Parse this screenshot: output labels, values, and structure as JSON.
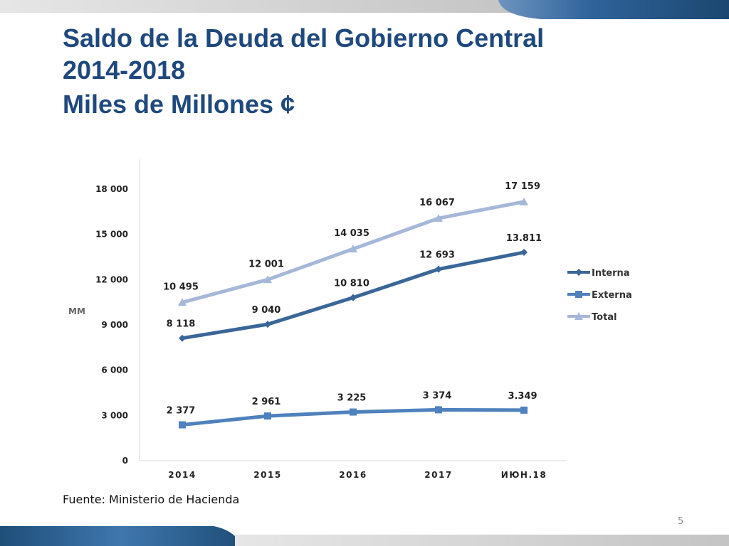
{
  "slide": {
    "title_line1": "Saldo de la Deuda del Gobierno Central",
    "title_line2": "2014-2018",
    "title_line3": "Miles de Millones ¢",
    "source": "Fuente: Ministerio de Hacienda",
    "page_number": "5"
  },
  "colors": {
    "title": "#1f497d",
    "interna": "#3a6698",
    "externa": "#4f81bd",
    "total": "#a6b8d9",
    "band_dark": "#1f4e79",
    "band_light": "#c8c8c8"
  },
  "chart_data": {
    "type": "line",
    "title": "",
    "ylabel": "MM",
    "xlabel": "",
    "categories": [
      "2014",
      "2015",
      "2016",
      "2017",
      "июн.18"
    ],
    "ylim": [
      0,
      18000
    ],
    "yticks": [
      0,
      3000,
      6000,
      9000,
      12000,
      15000,
      18000
    ],
    "ytick_labels": [
      "0",
      "3 000",
      "6 000",
      "9 000",
      "12 000",
      "15 000",
      "18 000"
    ],
    "grid": false,
    "legend_position": "right",
    "series": [
      {
        "name": "Interna",
        "marker": "diamond",
        "color": "#3a6698",
        "values": [
          8118,
          9040,
          10810,
          12693,
          13811
        ],
        "labels": [
          "8 118",
          "9 040",
          "10 810",
          "12 693",
          "13.811"
        ]
      },
      {
        "name": "Externa",
        "marker": "square",
        "color": "#4f81bd",
        "values": [
          2377,
          2961,
          3225,
          3374,
          3349
        ],
        "labels": [
          "2 377",
          "2 961",
          "3 225",
          "3 374",
          "3.349"
        ]
      },
      {
        "name": "Total",
        "marker": "triangle",
        "color": "#a6b8d9",
        "values": [
          10495,
          12001,
          14035,
          16067,
          17159
        ],
        "labels": [
          "10 495",
          "12 001",
          "14 035",
          "16 067",
          "17 159"
        ]
      }
    ]
  }
}
